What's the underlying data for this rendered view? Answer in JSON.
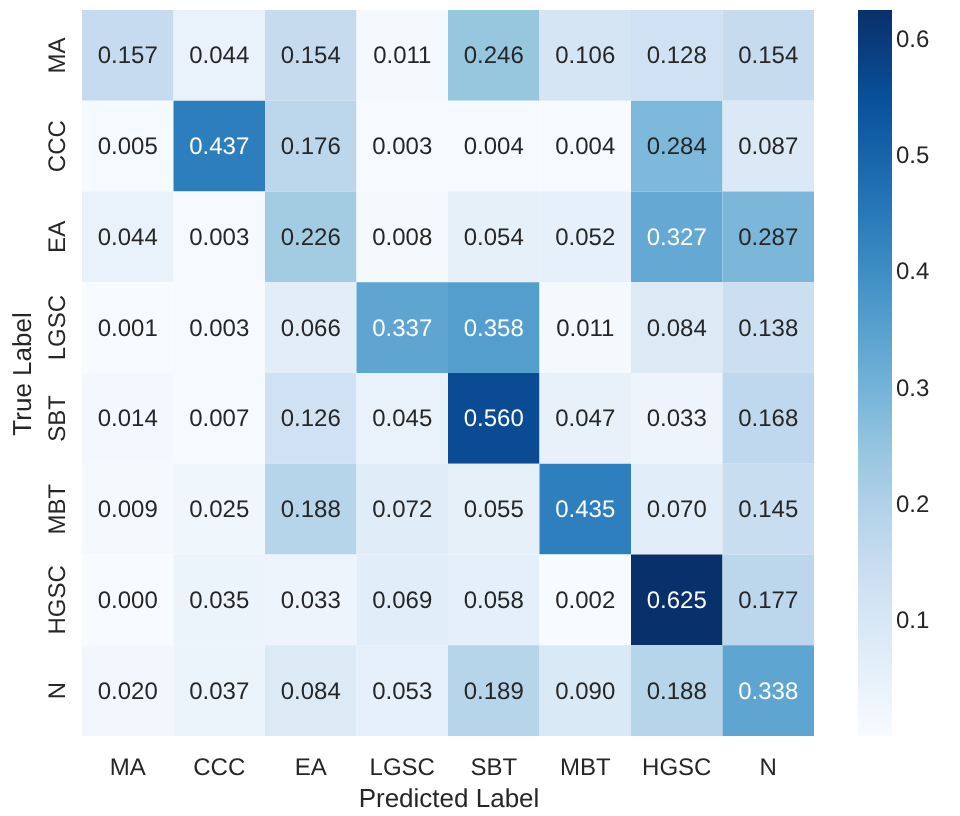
{
  "chart_data": {
    "type": "heatmap",
    "xlabel": "Predicted Label",
    "ylabel": "True Label",
    "categories": [
      "MA",
      "CCC",
      "EA",
      "LGSC",
      "SBT",
      "MBT",
      "HGSC",
      "N"
    ],
    "y_categories": [
      "MA",
      "CCC",
      "EA",
      "LGSC",
      "SBT",
      "MBT",
      "HGSC",
      "N"
    ],
    "cells": [
      [
        0.157,
        0.044,
        0.154,
        0.011,
        0.246,
        0.106,
        0.128,
        0.154
      ],
      [
        0.005,
        0.437,
        0.176,
        0.003,
        0.004,
        0.004,
        0.284,
        0.087
      ],
      [
        0.044,
        0.003,
        0.226,
        0.008,
        0.054,
        0.052,
        0.327,
        0.287
      ],
      [
        0.001,
        0.003,
        0.066,
        0.337,
        0.358,
        0.011,
        0.084,
        0.138
      ],
      [
        0.014,
        0.007,
        0.126,
        0.045,
        0.56,
        0.047,
        0.033,
        0.168
      ],
      [
        0.009,
        0.025,
        0.188,
        0.072,
        0.055,
        0.435,
        0.07,
        0.145
      ],
      [
        0.0,
        0.035,
        0.033,
        0.069,
        0.058,
        0.002,
        0.625,
        0.177
      ],
      [
        0.02,
        0.037,
        0.084,
        0.053,
        0.189,
        0.09,
        0.188,
        0.338
      ]
    ],
    "cell_labels": [
      [
        "0.157",
        "0.044",
        "0.154",
        "0.011",
        "0.246",
        "0.106",
        "0.128",
        "0.154"
      ],
      [
        "0.005",
        "0.437",
        "0.176",
        "0.003",
        "0.004",
        "0.004",
        "0.284",
        "0.087"
      ],
      [
        "0.044",
        "0.003",
        "0.226",
        "0.008",
        "0.054",
        "0.052",
        "0.327",
        "0.287"
      ],
      [
        "0.001",
        "0.003",
        "0.066",
        "0.337",
        "0.358",
        "0.011",
        "0.084",
        "0.138"
      ],
      [
        "0.014",
        "0.007",
        "0.126",
        "0.045",
        "0.560",
        "0.047",
        "0.033",
        "0.168"
      ],
      [
        "0.009",
        "0.025",
        "0.188",
        "0.072",
        "0.055",
        "0.435",
        "0.070",
        "0.145"
      ],
      [
        "0.000",
        "0.035",
        "0.033",
        "0.069",
        "0.058",
        "0.002",
        "0.625",
        "0.177"
      ],
      [
        "0.020",
        "0.037",
        "0.084",
        "0.053",
        "0.189",
        "0.090",
        "0.188",
        "0.338"
      ]
    ],
    "clim": [
      0,
      0.625
    ],
    "cticks": [
      0.1,
      0.2,
      0.3,
      0.4,
      0.5,
      0.6
    ]
  }
}
